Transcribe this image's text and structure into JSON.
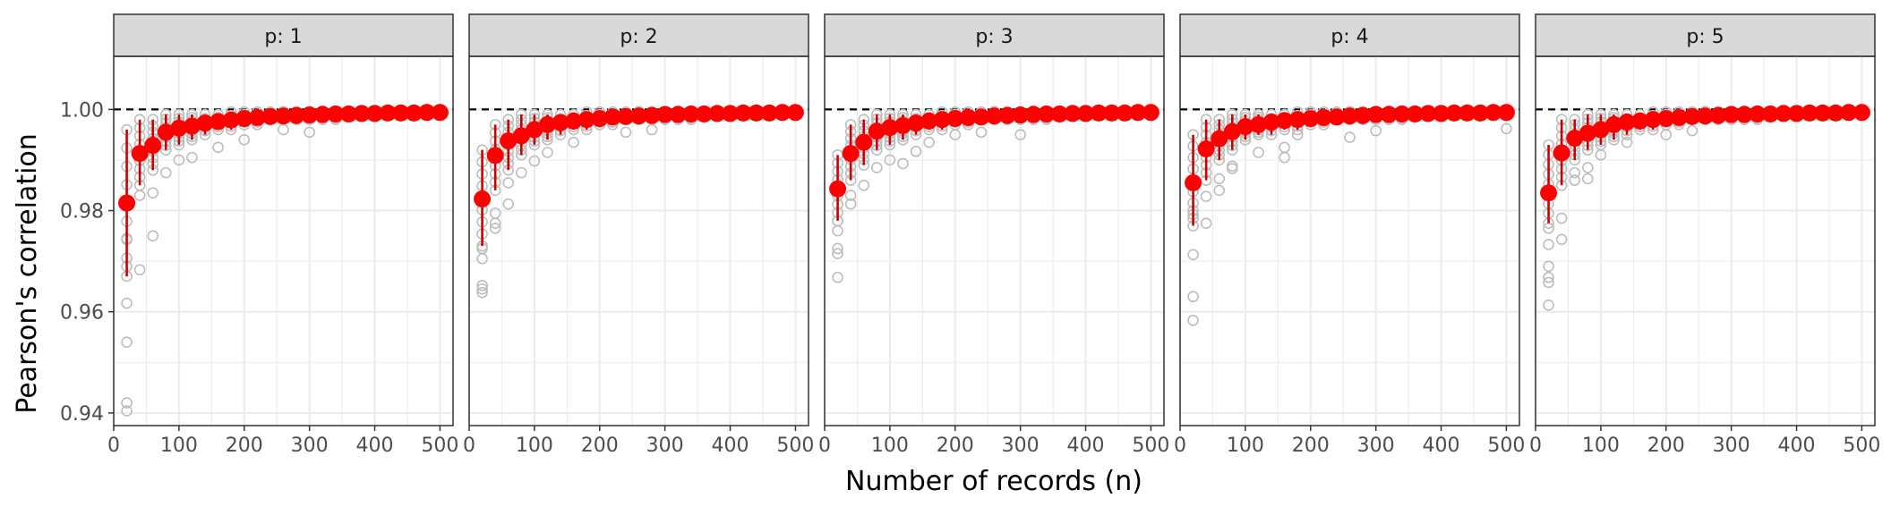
{
  "chart_data": {
    "type": "scatter",
    "facet_label": "p",
    "xlabel": "Number of records (n)",
    "ylabel": "Pearson's correlation",
    "xlim": [
      0,
      520
    ],
    "ylim": [
      0.9375,
      1.0105
    ],
    "x_ticks": [
      0,
      100,
      200,
      300,
      400,
      500
    ],
    "y_ticks": [
      0.94,
      0.96,
      0.98,
      1.0
    ],
    "y_tick_labels": [
      "0.94",
      "0.96",
      "0.98",
      "1.00"
    ],
    "reference_line": 1.0,
    "grid": true,
    "point_color": "#ff0000",
    "error_bar_color": "#cc0000",
    "raw_point_color": "#bdbdbd",
    "strip_fill": "#d9d9d9",
    "n_values": [
      20,
      40,
      60,
      80,
      100,
      120,
      140,
      160,
      180,
      200,
      220,
      240,
      260,
      280,
      300,
      320,
      340,
      360,
      380,
      400,
      420,
      440,
      460,
      480,
      500
    ],
    "panels": [
      {
        "label": "p: 1",
        "means": [
          0.9815,
          0.9913,
          0.9929,
          0.9955,
          0.9963,
          0.9967,
          0.9973,
          0.9976,
          0.9979,
          0.9982,
          0.9984,
          0.9986,
          0.9987,
          0.9988,
          0.9989,
          0.999,
          0.9991,
          0.9991,
          0.9992,
          0.9992,
          0.9993,
          0.9993,
          0.9993,
          0.9994,
          0.9994
        ],
        "lower": [
          0.967,
          0.985,
          0.988,
          0.992,
          0.993,
          0.994,
          0.995,
          0.996,
          0.996,
          0.997,
          0.997,
          0.998,
          0.998,
          0.998,
          0.998,
          0.998,
          0.998,
          0.999,
          0.999,
          0.999,
          0.999,
          0.999,
          0.999,
          0.999,
          0.999
        ],
        "upper": [
          0.996,
          0.998,
          0.998,
          0.999,
          0.999,
          0.999,
          0.999,
          0.999,
          0.9995,
          0.9995,
          0.9995,
          0.9995,
          0.9996,
          0.9996,
          0.9996,
          0.9997,
          0.9997,
          0.9997,
          0.9997,
          0.9997,
          0.9997,
          0.9997,
          0.9997,
          0.9998,
          0.9998
        ],
        "outliers": [
          [
            20,
            0.9404
          ],
          [
            20,
            0.942
          ],
          [
            20,
            0.954
          ],
          [
            20,
            0.9617
          ],
          [
            20,
            0.969
          ],
          [
            20,
            0.9745
          ],
          [
            40,
            0.9683
          ],
          [
            60,
            0.975
          ],
          [
            60,
            0.9835
          ],
          [
            40,
            0.983
          ],
          [
            80,
            0.9875
          ],
          [
            100,
            0.99
          ],
          [
            120,
            0.9905
          ],
          [
            160,
            0.9925
          ],
          [
            200,
            0.994
          ],
          [
            260,
            0.996
          ],
          [
            300,
            0.9955
          ]
        ]
      },
      {
        "label": "p: 2",
        "means": [
          0.9823,
          0.9909,
          0.9938,
          0.9948,
          0.996,
          0.997,
          0.9974,
          0.9977,
          0.998,
          0.9982,
          0.9985,
          0.9986,
          0.9987,
          0.9988,
          0.999,
          0.999,
          0.9991,
          0.9991,
          0.9992,
          0.9992,
          0.9993,
          0.9993,
          0.9993,
          0.9994,
          0.9994
        ],
        "lower": [
          0.973,
          0.984,
          0.988,
          0.991,
          0.993,
          0.994,
          0.995,
          0.996,
          0.996,
          0.997,
          0.997,
          0.998,
          0.998,
          0.998,
          0.998,
          0.998,
          0.998,
          0.999,
          0.999,
          0.999,
          0.999,
          0.999,
          0.999,
          0.999,
          0.999
        ],
        "upper": [
          0.992,
          0.997,
          0.998,
          0.999,
          0.999,
          0.999,
          0.999,
          0.999,
          0.9995,
          0.9995,
          0.9995,
          0.9995,
          0.9996,
          0.9996,
          0.9996,
          0.9997,
          0.9997,
          0.9997,
          0.9997,
          0.9997,
          0.9997,
          0.9997,
          0.9997,
          0.9998,
          0.9998
        ],
        "outliers": [
          [
            20,
            0.9638
          ],
          [
            20,
            0.9645
          ],
          [
            20,
            0.9652
          ],
          [
            20,
            0.9705
          ],
          [
            20,
            0.9725
          ],
          [
            40,
            0.9765
          ],
          [
            40,
            0.9775
          ],
          [
            60,
            0.9813
          ],
          [
            40,
            0.9795
          ],
          [
            60,
            0.9855
          ],
          [
            80,
            0.9875
          ],
          [
            100,
            0.9898
          ],
          [
            120,
            0.9915
          ],
          [
            160,
            0.9935
          ],
          [
            240,
            0.9955
          ],
          [
            280,
            0.996
          ]
        ]
      },
      {
        "label": "p: 3",
        "means": [
          0.9843,
          0.9913,
          0.9935,
          0.9957,
          0.9964,
          0.9968,
          0.9973,
          0.9977,
          0.998,
          0.9982,
          0.9984,
          0.9985,
          0.9987,
          0.9988,
          0.9989,
          0.999,
          0.9991,
          0.9991,
          0.9992,
          0.9992,
          0.9993,
          0.9993,
          0.9993,
          0.9994,
          0.9994
        ],
        "lower": [
          0.978,
          0.986,
          0.989,
          0.992,
          0.993,
          0.994,
          0.995,
          0.996,
          0.996,
          0.997,
          0.997,
          0.998,
          0.998,
          0.998,
          0.998,
          0.998,
          0.998,
          0.999,
          0.999,
          0.999,
          0.999,
          0.999,
          0.999,
          0.999,
          0.999
        ],
        "upper": [
          0.991,
          0.997,
          0.998,
          0.999,
          0.999,
          0.999,
          0.999,
          0.999,
          0.9995,
          0.9995,
          0.9995,
          0.9995,
          0.9996,
          0.9996,
          0.9996,
          0.9997,
          0.9997,
          0.9997,
          0.9997,
          0.9997,
          0.9997,
          0.9997,
          0.9997,
          0.9998,
          0.9998
        ],
        "outliers": [
          [
            20,
            0.9668
          ],
          [
            20,
            0.9715
          ],
          [
            20,
            0.9725
          ],
          [
            20,
            0.976
          ],
          [
            20,
            0.978
          ],
          [
            40,
            0.9813
          ],
          [
            40,
            0.983
          ],
          [
            60,
            0.985
          ],
          [
            80,
            0.9885
          ],
          [
            100,
            0.99
          ],
          [
            120,
            0.9893
          ],
          [
            140,
            0.9917
          ],
          [
            160,
            0.9935
          ],
          [
            200,
            0.995
          ],
          [
            240,
            0.9955
          ],
          [
            300,
            0.995
          ]
        ]
      },
      {
        "label": "p: 4",
        "means": [
          0.9855,
          0.9922,
          0.9942,
          0.9956,
          0.9966,
          0.997,
          0.9975,
          0.9978,
          0.998,
          0.9982,
          0.9984,
          0.9985,
          0.9987,
          0.9988,
          0.999,
          0.999,
          0.9991,
          0.9991,
          0.9992,
          0.9992,
          0.9993,
          0.9993,
          0.9993,
          0.9994,
          0.9994
        ],
        "lower": [
          0.977,
          0.986,
          0.99,
          0.992,
          0.994,
          0.995,
          0.995,
          0.996,
          0.996,
          0.997,
          0.997,
          0.998,
          0.998,
          0.998,
          0.998,
          0.998,
          0.998,
          0.999,
          0.999,
          0.999,
          0.999,
          0.999,
          0.999,
          0.999,
          0.999
        ],
        "upper": [
          0.995,
          0.998,
          0.998,
          0.999,
          0.999,
          0.999,
          0.999,
          0.999,
          0.9995,
          0.9995,
          0.9995,
          0.9995,
          0.9996,
          0.9996,
          0.9996,
          0.9997,
          0.9997,
          0.9997,
          0.9997,
          0.9997,
          0.9997,
          0.9997,
          0.9997,
          0.9998,
          0.9998
        ],
        "outliers": [
          [
            20,
            0.9583
          ],
          [
            20,
            0.963
          ],
          [
            20,
            0.9713
          ],
          [
            20,
            0.9785
          ],
          [
            20,
            0.98
          ],
          [
            40,
            0.9775
          ],
          [
            40,
            0.9828
          ],
          [
            60,
            0.984
          ],
          [
            60,
            0.9863
          ],
          [
            80,
            0.9883
          ],
          [
            80,
            0.9888
          ],
          [
            120,
            0.9915
          ],
          [
            160,
            0.9905
          ],
          [
            160,
            0.9925
          ],
          [
            180,
            0.995
          ],
          [
            260,
            0.9945
          ],
          [
            300,
            0.9958
          ],
          [
            500,
            0.9962
          ]
        ]
      },
      {
        "label": "p: 5",
        "means": [
          0.9835,
          0.9914,
          0.9943,
          0.9953,
          0.996,
          0.997,
          0.9975,
          0.9977,
          0.998,
          0.9982,
          0.9984,
          0.9986,
          0.9987,
          0.9988,
          0.999,
          0.999,
          0.9991,
          0.9991,
          0.9992,
          0.9992,
          0.9993,
          0.9993,
          0.9993,
          0.9994,
          0.9994
        ],
        "lower": [
          0.9775,
          0.985,
          0.99,
          0.992,
          0.993,
          0.994,
          0.995,
          0.996,
          0.996,
          0.997,
          0.997,
          0.998,
          0.998,
          0.998,
          0.998,
          0.998,
          0.998,
          0.999,
          0.999,
          0.999,
          0.999,
          0.999,
          0.999,
          0.999,
          0.999
        ],
        "upper": [
          0.993,
          0.998,
          0.998,
          0.999,
          0.999,
          0.999,
          0.999,
          0.999,
          0.9995,
          0.9995,
          0.9995,
          0.9995,
          0.9996,
          0.9996,
          0.9996,
          0.9997,
          0.9997,
          0.9997,
          0.9997,
          0.9997,
          0.9997,
          0.9997,
          0.9997,
          0.9998,
          0.9998
        ],
        "outliers": [
          [
            20,
            0.9613
          ],
          [
            20,
            0.9658
          ],
          [
            20,
            0.9668
          ],
          [
            20,
            0.969
          ],
          [
            20,
            0.9733
          ],
          [
            20,
            0.9765
          ],
          [
            40,
            0.9743
          ],
          [
            40,
            0.9785
          ],
          [
            60,
            0.986
          ],
          [
            60,
            0.9875
          ],
          [
            80,
            0.9863
          ],
          [
            80,
            0.9885
          ],
          [
            100,
            0.991
          ],
          [
            140,
            0.9935
          ],
          [
            200,
            0.995
          ],
          [
            240,
            0.9958
          ]
        ]
      }
    ]
  }
}
